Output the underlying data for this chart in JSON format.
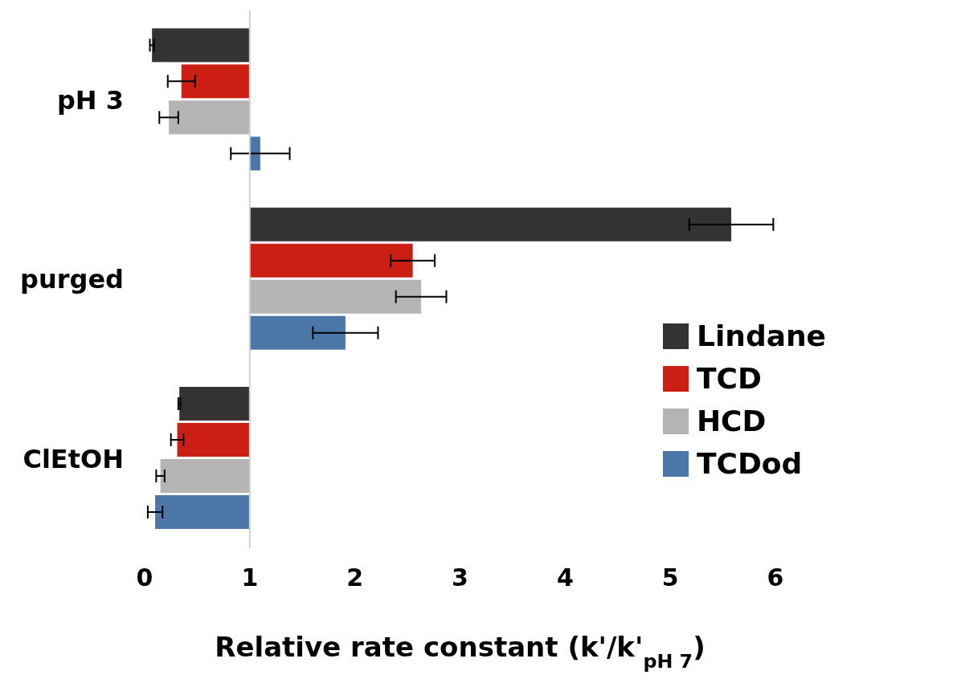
{
  "chart_data": {
    "type": "bar",
    "orientation": "horizontal",
    "xlabel": "Relative rate constant (k'/k'$_{pH 7}$)",
    "categories": [
      "pH 3",
      "purged",
      "ClEtOH"
    ],
    "series": [
      {
        "name": "Lindane",
        "color": "#333333",
        "base": [
          1,
          1,
          1
        ],
        "values": [
          -0.93,
          4.58,
          -0.67
        ],
        "errors": [
          0.02,
          0.4,
          0.01
        ]
      },
      {
        "name": "TCD",
        "color": "#cc1f14",
        "base": [
          1,
          1,
          1
        ],
        "values": [
          -0.65,
          1.55,
          -0.69
        ],
        "errors": [
          0.13,
          0.21,
          0.06
        ]
      },
      {
        "name": "HCD",
        "color": "#b4b4b4",
        "base": [
          1,
          1,
          1
        ],
        "values": [
          -0.77,
          1.63,
          -0.85
        ],
        "errors": [
          0.09,
          0.24,
          0.04
        ]
      },
      {
        "name": "TCDod",
        "color": "#4a77a8",
        "base": [
          1,
          1,
          1
        ],
        "values": [
          0.1,
          0.91,
          -0.9
        ],
        "errors": [
          0.28,
          0.31,
          0.07
        ]
      }
    ],
    "ref_lines": [
      {
        "axis": "x",
        "value": 1,
        "color": "#d0d0d0"
      }
    ],
    "xlim": [
      0,
      6
    ],
    "xticks": [
      0,
      1,
      2,
      3,
      4,
      5,
      6
    ],
    "legend": "right"
  }
}
